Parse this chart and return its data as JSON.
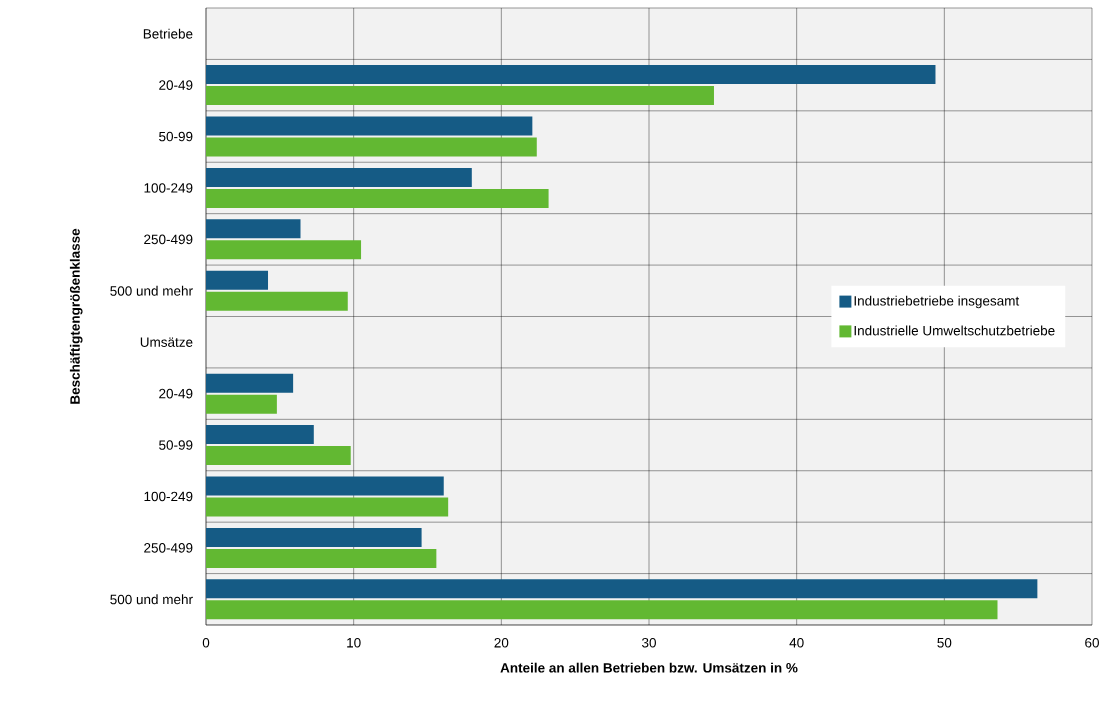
{
  "chart_data": {
    "type": "bar",
    "orientation": "horizontal",
    "xlabel": "Anteile an allen Betrieben bzw. Umsätzen in %",
    "ylabel": "Beschäftigtengrößenklasse",
    "categories": [
      "Betriebe",
      "20-49",
      "50-99",
      "100-249",
      "250-499",
      "500 und mehr",
      "Umsätze",
      "20-49",
      "50-99",
      "100-249",
      "250-499",
      "500 und mehr"
    ],
    "series": [
      {
        "name": "Industriebetriebe insgesamt",
        "color": "#155b85",
        "values": [
          null,
          49.4,
          22.1,
          18.0,
          6.4,
          4.2,
          null,
          5.9,
          7.3,
          16.1,
          14.6,
          56.3
        ]
      },
      {
        "name": "Industrielle Umweltschutzbetriebe",
        "color": "#62b832",
        "values": [
          null,
          34.4,
          22.4,
          23.2,
          10.5,
          9.6,
          null,
          4.8,
          9.8,
          16.4,
          15.6,
          53.6
        ]
      }
    ],
    "xlim": [
      0,
      60
    ],
    "xticks": [
      0,
      10,
      20,
      30,
      40,
      50,
      60
    ],
    "grid": true,
    "legend": "right"
  }
}
